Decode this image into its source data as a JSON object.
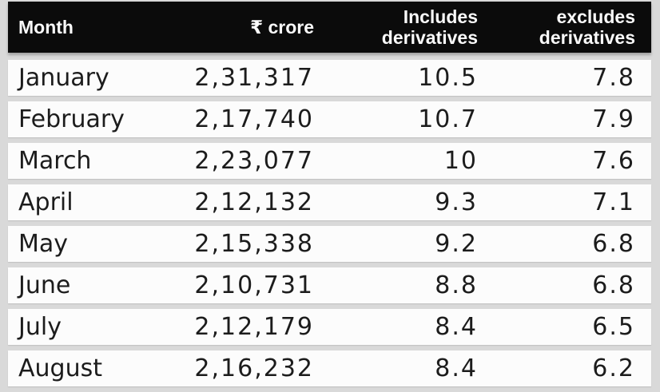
{
  "colors": {
    "background": "#d9d9d9",
    "header_bg": "#0b0b0b",
    "header_text": "#fafafa",
    "row_bg": "#fcfcfc",
    "row_text": "#1c1c1c"
  },
  "table": {
    "header": {
      "month": "Month",
      "crore": "₹ crore",
      "includes_line1": "Includes",
      "includes_line2": "derivatives",
      "excludes_line1": "excludes",
      "excludes_line2": "derivatives"
    },
    "rows": [
      {
        "month": "January",
        "crore": "2,31,317",
        "includes": "10.5",
        "excludes": "7.8"
      },
      {
        "month": "February",
        "crore": "2,17,740",
        "includes": "10.7",
        "excludes": "7.9"
      },
      {
        "month": "March",
        "crore": "2,23,077",
        "includes": "10",
        "excludes": "7.6"
      },
      {
        "month": "April",
        "crore": "2,12,132",
        "includes": "9.3",
        "excludes": "7.1"
      },
      {
        "month": "May",
        "crore": "2,15,338",
        "includes": "9.2",
        "excludes": "6.8"
      },
      {
        "month": "June",
        "crore": "2,10,731",
        "includes": "8.8",
        "excludes": "6.8"
      },
      {
        "month": "July",
        "crore": "2,12,179",
        "includes": "8.4",
        "excludes": "6.5"
      },
      {
        "month": "August",
        "crore": "2,16,232",
        "includes": "8.4",
        "excludes": "6.2"
      }
    ]
  },
  "chart_data": {
    "type": "table",
    "columns": [
      "Month",
      "₹ crore",
      "Includes derivatives",
      "excludes derivatives"
    ],
    "rows": [
      [
        "January",
        "2,31,317",
        10.5,
        7.8
      ],
      [
        "February",
        "2,17,740",
        10.7,
        7.9
      ],
      [
        "March",
        "2,23,077",
        10,
        7.6
      ],
      [
        "April",
        "2,12,132",
        9.3,
        7.1
      ],
      [
        "May",
        "2,15,338",
        9.2,
        6.8
      ],
      [
        "June",
        "2,10,731",
        8.8,
        6.8
      ],
      [
        "July",
        "2,12,179",
        8.4,
        6.5
      ],
      [
        "August",
        "2,16,232",
        8.4,
        6.2
      ]
    ]
  }
}
